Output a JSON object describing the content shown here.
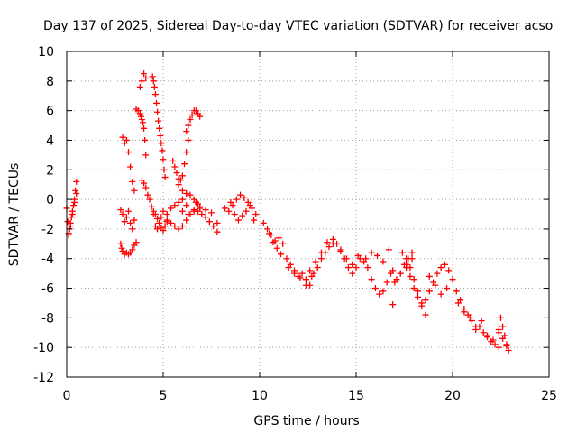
{
  "chart_data": {
    "type": "scatter",
    "title": "Day 137 of 2025, Sidereal Day-to-day VTEC variation (SDTVAR) for receiver acso",
    "xlabel": "GPS time / hours",
    "ylabel": "SDTVAR / TECUs",
    "xlim": [
      0,
      25
    ],
    "ylim": [
      -12,
      10
    ],
    "xticks": [
      0,
      5,
      10,
      15,
      20,
      25
    ],
    "yticks": [
      -12,
      -10,
      -8,
      -6,
      -4,
      -2,
      0,
      2,
      4,
      6,
      8,
      10
    ],
    "grid": true,
    "marker": "+",
    "series": [
      {
        "name": "SDTVAR",
        "color": "#ff0000",
        "x": [
          0.0,
          0.05,
          0.1,
          0.15,
          0.2,
          0.25,
          0.3,
          0.35,
          0.4,
          0.45,
          0.5,
          0.1,
          0.2,
          0.3,
          0.4,
          0.5,
          2.8,
          2.9,
          3.0,
          3.1,
          3.2,
          3.3,
          3.4,
          3.5,
          2.9,
          3.0,
          3.1,
          3.2,
          3.3,
          3.4,
          3.5,
          2.8,
          2.85,
          2.9,
          3.0,
          3.1,
          3.2,
          3.3,
          3.4,
          3.5,
          3.6,
          3.6,
          3.7,
          3.8,
          3.85,
          3.9,
          3.95,
          4.0,
          4.05,
          4.1,
          3.8,
          3.9,
          4.0,
          4.1,
          3.9,
          4.0,
          4.1,
          4.2,
          4.3,
          4.4,
          4.5,
          4.45,
          4.5,
          4.55,
          4.6,
          4.65,
          4.7,
          4.75,
          4.8,
          4.85,
          4.9,
          4.95,
          5.0,
          5.05,
          5.1,
          4.5,
          4.6,
          4.7,
          4.8,
          4.9,
          5.0,
          5.1,
          5.2,
          4.6,
          4.7,
          4.8,
          4.9,
          5.0,
          5.2,
          5.4,
          5.6,
          5.8,
          6.0,
          6.2,
          5.5,
          5.6,
          5.7,
          5.8,
          5.9,
          6.0,
          6.1,
          6.2,
          6.3,
          5.8,
          6.0,
          6.2,
          6.4,
          6.6,
          6.7,
          6.8,
          6.9,
          6.2,
          6.3,
          6.4,
          6.5,
          6.6,
          6.7,
          6.8,
          6.9,
          5.2,
          5.4,
          5.6,
          5.8,
          6.0,
          6.2,
          6.4,
          6.6,
          6.8,
          7.0,
          7.2,
          7.4,
          7.6,
          7.8,
          6.0,
          6.3,
          6.6,
          6.9,
          7.2,
          7.5,
          7.8,
          8.2,
          8.4,
          8.6,
          8.8,
          9.0,
          9.2,
          9.4,
          9.6,
          9.8,
          8.5,
          8.7,
          8.9,
          9.1,
          9.3,
          9.5,
          9.7,
          10.2,
          10.4,
          10.6,
          10.8,
          11.0,
          11.2,
          10.5,
          10.7,
          10.9,
          11.1,
          11.4,
          11.6,
          11.8,
          12.0,
          12.2,
          12.4,
          12.6,
          11.5,
          11.8,
          12.1,
          12.4,
          12.7,
          12.8,
          13.0,
          13.2,
          13.4,
          13.6,
          13.8,
          12.6,
          12.9,
          13.2,
          13.5,
          13.8,
          14.0,
          14.2,
          14.4,
          14.6,
          14.8,
          15.0,
          15.2,
          14.2,
          14.5,
          14.8,
          15.1,
          15.4,
          15.6,
          15.8,
          16.0,
          16.2,
          16.4,
          16.6,
          16.8,
          15.5,
          15.8,
          16.1,
          16.4,
          16.7,
          16.9,
          17.1,
          17.3,
          17.5,
          17.7,
          17.9,
          17.0,
          17.3,
          17.6,
          17.9,
          16.9,
          17.4,
          17.6,
          17.8,
          18.0,
          18.2,
          18.4,
          18.6,
          17.6,
          17.8,
          18.0,
          18.2,
          18.4,
          18.6,
          18.8,
          19.0,
          19.2,
          19.4,
          19.6,
          19.8,
          18.8,
          19.1,
          19.4,
          19.7,
          20.0,
          20.2,
          20.4,
          20.6,
          20.8,
          21.0,
          21.2,
          20.3,
          20.6,
          20.9,
          21.2,
          21.4,
          21.6,
          21.8,
          22.0,
          22.2,
          22.4,
          21.5,
          21.8,
          22.1,
          22.4,
          22.5,
          22.6,
          22.7,
          22.8,
          22.9,
          22.4,
          22.6,
          22.8
        ],
        "y": [
          -0.6,
          -1.5,
          -2.3,
          -2.0,
          -1.6,
          -1.2,
          -0.8,
          -0.4,
          0.0,
          0.6,
          1.2,
          -2.4,
          -1.8,
          -1.0,
          -0.2,
          0.4,
          -0.7,
          -1.0,
          -1.5,
          -1.2,
          -0.8,
          -1.6,
          -2.0,
          -1.4,
          4.2,
          3.8,
          4.0,
          3.2,
          2.2,
          1.2,
          0.6,
          -3.0,
          -3.3,
          -3.5,
          -3.7,
          -3.6,
          -3.7,
          -3.6,
          -3.4,
          -3.1,
          -2.9,
          6.1,
          6.0,
          5.8,
          5.6,
          5.4,
          5.2,
          4.8,
          4.0,
          3.0,
          7.6,
          8.0,
          8.5,
          8.2,
          1.3,
          1.1,
          0.8,
          0.3,
          0.0,
          -0.5,
          -1.0,
          8.3,
          8.0,
          7.6,
          7.1,
          6.5,
          5.9,
          5.3,
          4.8,
          4.3,
          3.8,
          3.3,
          2.7,
          2.0,
          1.5,
          -0.8,
          -1.0,
          -1.3,
          -1.6,
          -1.9,
          -2.1,
          -1.8,
          -1.5,
          -1.8,
          -2.0,
          -1.6,
          -1.2,
          -0.8,
          -1.0,
          -0.6,
          -0.4,
          -0.2,
          0.0,
          -0.4,
          2.6,
          2.2,
          1.8,
          1.4,
          1.3,
          1.6,
          2.4,
          3.2,
          4.0,
          1.0,
          0.6,
          0.4,
          0.3,
          0.0,
          -0.2,
          -0.3,
          -0.5,
          4.6,
          5.0,
          5.4,
          5.7,
          6.0,
          6.0,
          5.8,
          5.6,
          -1.4,
          -1.6,
          -1.8,
          -2.0,
          -1.8,
          -1.4,
          -1.0,
          -0.8,
          -0.8,
          -1.0,
          -1.2,
          -1.5,
          -1.8,
          -2.2,
          -0.8,
          -1.0,
          -0.7,
          -0.6,
          -0.7,
          -0.9,
          -1.6,
          -0.6,
          -0.8,
          -0.4,
          0.0,
          0.3,
          0.1,
          -0.2,
          -0.6,
          -1.0,
          -0.2,
          -1.0,
          -1.4,
          -1.1,
          -0.8,
          -0.4,
          -1.4,
          -1.6,
          -2.0,
          -2.4,
          -2.8,
          -2.6,
          -3.0,
          -2.3,
          -2.9,
          -3.3,
          -3.7,
          -4.0,
          -4.4,
          -4.8,
          -5.2,
          -5.0,
          -5.4,
          -5.8,
          -4.6,
          -5.0,
          -5.3,
          -5.8,
          -5.2,
          -5.0,
          -4.6,
          -4.0,
          -3.6,
          -3.2,
          -3.0,
          -4.8,
          -4.2,
          -3.6,
          -2.9,
          -2.7,
          -3.0,
          -3.5,
          -4.0,
          -4.6,
          -5.0,
          -4.6,
          -4.0,
          -3.4,
          -4.0,
          -4.4,
          -3.8,
          -4.2,
          -4.6,
          -5.4,
          -6.0,
          -6.4,
          -6.2,
          -5.6,
          -5.0,
          -4.0,
          -3.6,
          -3.8,
          -4.2,
          -3.4,
          -4.8,
          -5.4,
          -5.0,
          -4.4,
          -4.0,
          -3.6,
          -5.6,
          -5.0,
          -4.6,
          -4.0,
          -7.1,
          -3.6,
          -4.4,
          -5.2,
          -6.0,
          -6.6,
          -7.2,
          -7.8,
          -4.0,
          -4.6,
          -5.4,
          -6.2,
          -7.0,
          -6.8,
          -6.2,
          -5.6,
          -5.0,
          -4.6,
          -4.4,
          -4.8,
          -5.2,
          -5.8,
          -6.4,
          -6.0,
          -5.4,
          -6.2,
          -6.8,
          -7.4,
          -7.8,
          -8.2,
          -8.6,
          -7.0,
          -7.6,
          -8.0,
          -8.8,
          -8.6,
          -9.0,
          -9.3,
          -9.6,
          -9.8,
          -10.0,
          -8.2,
          -9.2,
          -9.5,
          -9.0,
          -8.0,
          -8.6,
          -9.2,
          -9.8,
          -10.2,
          -8.8,
          -9.4,
          -9.9
        ]
      }
    ]
  }
}
